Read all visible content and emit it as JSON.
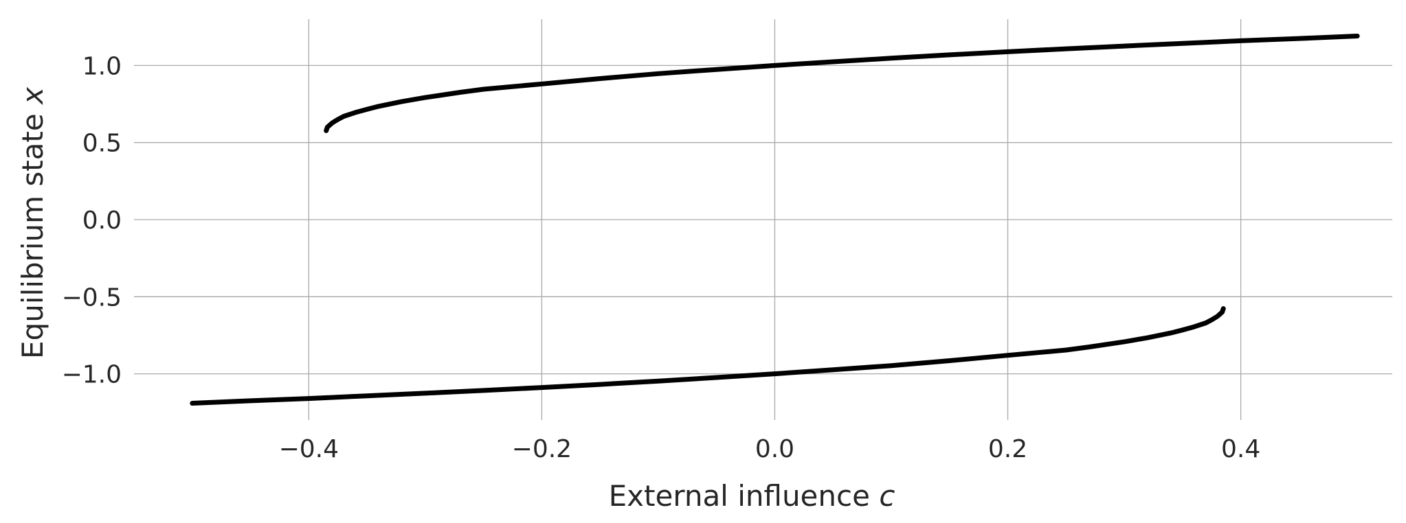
{
  "chart_data": {
    "type": "scatter",
    "title": "",
    "xlabel": "External influence ",
    "xlabel_var": "c",
    "ylabel": "Equilibrium state ",
    "ylabel_var": "x",
    "xlim": [
      -0.55,
      0.53
    ],
    "ylim": [
      -1.3,
      1.3
    ],
    "xticks": [
      -0.4,
      -0.2,
      0.0,
      0.2,
      0.4
    ],
    "yticks": [
      -1.0,
      -0.5,
      0.0,
      0.5,
      1.0
    ],
    "xtick_labels": [
      "−0.4",
      "−0.2",
      "0.0",
      "0.2",
      "0.4"
    ],
    "ytick_labels": [
      "−1.0",
      "−0.5",
      "0.0",
      "0.5",
      "1.0"
    ],
    "grid": true,
    "colors": {
      "series": "#000000",
      "grid": "#a9a9a9",
      "text": "#262626"
    },
    "series": [
      {
        "x": [
          -0.385,
          -0.384,
          -0.38,
          -0.375,
          -0.37,
          -0.36,
          -0.35,
          -0.34,
          -0.32,
          -0.3,
          -0.27,
          -0.25,
          -0.2,
          -0.15,
          -0.1,
          -0.05,
          0.0,
          0.05,
          0.1,
          0.15,
          0.2,
          0.25,
          0.3,
          0.35,
          0.4,
          0.45,
          0.5
        ],
        "y": [
          0.577,
          0.6,
          0.627,
          0.65,
          0.67,
          0.695,
          0.716,
          0.735,
          0.766,
          0.792,
          0.826,
          0.846,
          0.88,
          0.915,
          0.947,
          0.974,
          1.0,
          1.024,
          1.047,
          1.069,
          1.089,
          1.108,
          1.126,
          1.143,
          1.16,
          1.175,
          1.191
        ]
      },
      {
        "x": [
          -0.5,
          -0.45,
          -0.4,
          -0.35,
          -0.3,
          -0.25,
          -0.2,
          -0.15,
          -0.1,
          -0.05,
          0.0,
          0.05,
          0.1,
          0.15,
          0.2,
          0.25,
          0.27,
          0.3,
          0.32,
          0.34,
          0.35,
          0.36,
          0.37,
          0.375,
          0.38,
          0.384,
          0.385
        ],
        "y": [
          -1.191,
          -1.175,
          -1.16,
          -1.143,
          -1.126,
          -1.108,
          -1.089,
          -1.069,
          -1.047,
          -1.024,
          -1.0,
          -0.974,
          -0.947,
          -0.915,
          -0.88,
          -0.846,
          -0.826,
          -0.792,
          -0.766,
          -0.735,
          -0.716,
          -0.695,
          -0.67,
          -0.65,
          -0.627,
          -0.6,
          -0.577
        ]
      }
    ]
  }
}
